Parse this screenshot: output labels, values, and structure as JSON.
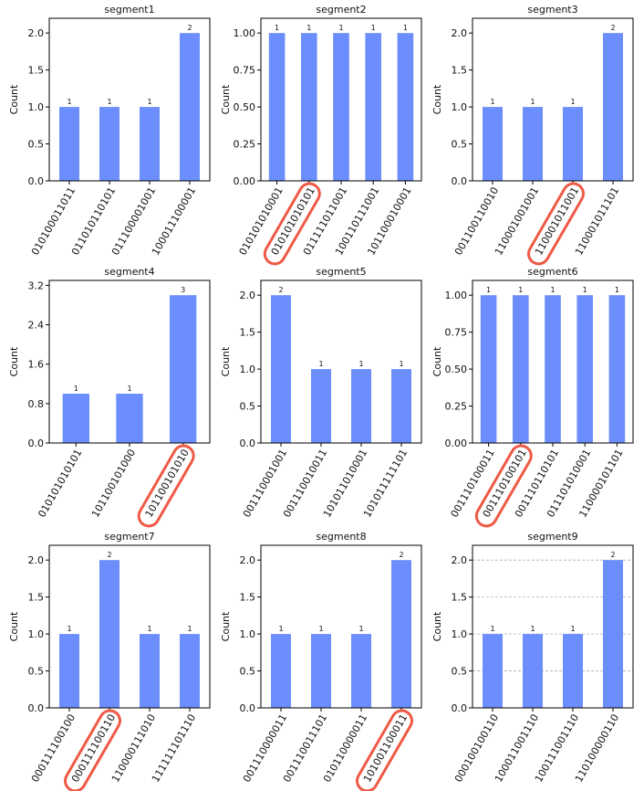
{
  "colors": {
    "bar": "#6b8efc",
    "highlight": "#ef5a45",
    "axis": "#000000",
    "grid": "#b0b0b0"
  },
  "chart_data": [
    {
      "type": "bar",
      "title": "segment1",
      "ylabel": "Count",
      "ylim": [
        0,
        2.2
      ],
      "yticks": [
        "0.0",
        "0.5",
        "1.0",
        "1.5",
        "2.0"
      ],
      "ytick_values": [
        0,
        0.5,
        1,
        1.5,
        2
      ],
      "categories": [
        "010100011011",
        "011010110101",
        "011100001001",
        "100011100001"
      ],
      "values": [
        1,
        1,
        1,
        2
      ],
      "labels": [
        "1",
        "1",
        "1",
        "2"
      ],
      "highlight": null,
      "grid": false
    },
    {
      "type": "bar",
      "title": "segment2",
      "ylabel": "Count",
      "ylim": [
        0,
        1.1
      ],
      "yticks": [
        "0.00",
        "0.25",
        "0.50",
        "0.75",
        "1.00"
      ],
      "ytick_values": [
        0,
        0.25,
        0.5,
        0.75,
        1
      ],
      "categories": [
        "010101010001",
        "010101010101",
        "011111011001",
        "100110111001",
        "101100010001"
      ],
      "values": [
        1,
        1,
        1,
        1,
        1
      ],
      "labels": [
        "1",
        "1",
        "1",
        "1",
        "1"
      ],
      "highlight": 1,
      "grid": false
    },
    {
      "type": "bar",
      "title": "segment3",
      "ylabel": "Count",
      "ylim": [
        0,
        2.2
      ],
      "yticks": [
        "0.0",
        "0.5",
        "1.0",
        "1.5",
        "2.0"
      ],
      "ytick_values": [
        0,
        0.5,
        1,
        1.5,
        2
      ],
      "categories": [
        "001100110010",
        "110001001001",
        "110001011001",
        "110001011101"
      ],
      "values": [
        1,
        1,
        1,
        2
      ],
      "labels": [
        "1",
        "1",
        "1",
        "2"
      ],
      "highlight": 2,
      "grid": false
    },
    {
      "type": "bar",
      "title": "segment4",
      "ylabel": "Count",
      "ylim": [
        0,
        3.3
      ],
      "yticks": [
        "0.0",
        "0.8",
        "1.6",
        "2.4",
        "3.2"
      ],
      "ytick_values": [
        0,
        0.8,
        1.6,
        2.4,
        3.2
      ],
      "categories": [
        "010101010101",
        "101100101000",
        "101100101010"
      ],
      "values": [
        1,
        1,
        3
      ],
      "labels": [
        "1",
        "1",
        "3"
      ],
      "highlight": 2,
      "grid": false
    },
    {
      "type": "bar",
      "title": "segment5",
      "ylabel": "Count",
      "ylim": [
        0,
        2.2
      ],
      "yticks": [
        "0.0",
        "0.5",
        "1.0",
        "1.5",
        "2.0"
      ],
      "ytick_values": [
        0,
        0.5,
        1,
        1.5,
        2
      ],
      "categories": [
        "001110001001",
        "001110010011",
        "101011010001",
        "101011111101"
      ],
      "values": [
        2,
        1,
        1,
        1
      ],
      "labels": [
        "2",
        "1",
        "1",
        "1"
      ],
      "highlight": null,
      "grid": false
    },
    {
      "type": "bar",
      "title": "segment6",
      "ylabel": "Count",
      "ylim": [
        0,
        1.1
      ],
      "yticks": [
        "0.00",
        "0.25",
        "0.50",
        "0.75",
        "1.00"
      ],
      "ytick_values": [
        0,
        0.25,
        0.5,
        0.75,
        1
      ],
      "categories": [
        "001110100011",
        "001110100101",
        "001110110101",
        "011101010001",
        "110000101101"
      ],
      "values": [
        1,
        1,
        1,
        1,
        1
      ],
      "labels": [
        "1",
        "1",
        "1",
        "1",
        "1"
      ],
      "highlight": 1,
      "grid": false
    },
    {
      "type": "bar",
      "title": "segment7",
      "ylabel": "Count",
      "ylim": [
        0,
        2.2
      ],
      "yticks": [
        "0.0",
        "0.5",
        "1.0",
        "1.5",
        "2.0"
      ],
      "ytick_values": [
        0,
        0.5,
        1,
        1.5,
        2
      ],
      "categories": [
        "000111100100",
        "000111100110",
        "110000111010",
        "111111101110"
      ],
      "values": [
        1,
        2,
        1,
        1
      ],
      "labels": [
        "1",
        "2",
        "1",
        "1"
      ],
      "highlight": 1,
      "grid": false
    },
    {
      "type": "bar",
      "title": "segment8",
      "ylabel": "Count",
      "ylim": [
        0,
        2.2
      ],
      "yticks": [
        "0.0",
        "0.5",
        "1.0",
        "1.5",
        "2.0"
      ],
      "ytick_values": [
        0,
        0.5,
        1,
        1.5,
        2
      ],
      "categories": [
        "001110000011",
        "001110011101",
        "010110000011",
        "101001100011"
      ],
      "values": [
        1,
        1,
        1,
        2
      ],
      "labels": [
        "1",
        "1",
        "1",
        "2"
      ],
      "highlight": 3,
      "grid": false
    },
    {
      "type": "bar",
      "title": "segment9",
      "ylabel": "Count",
      "ylim": [
        0,
        2.2
      ],
      "yticks": [
        "0.0",
        "0.5",
        "1.0",
        "1.5",
        "2.0"
      ],
      "ytick_values": [
        0,
        0.5,
        1,
        1.5,
        2
      ],
      "categories": [
        "000100100110",
        "100011001110",
        "100111001110",
        "110100000110"
      ],
      "values": [
        1,
        1,
        1,
        2
      ],
      "labels": [
        "1",
        "1",
        "1",
        "2"
      ],
      "highlight": null,
      "grid": true
    }
  ]
}
